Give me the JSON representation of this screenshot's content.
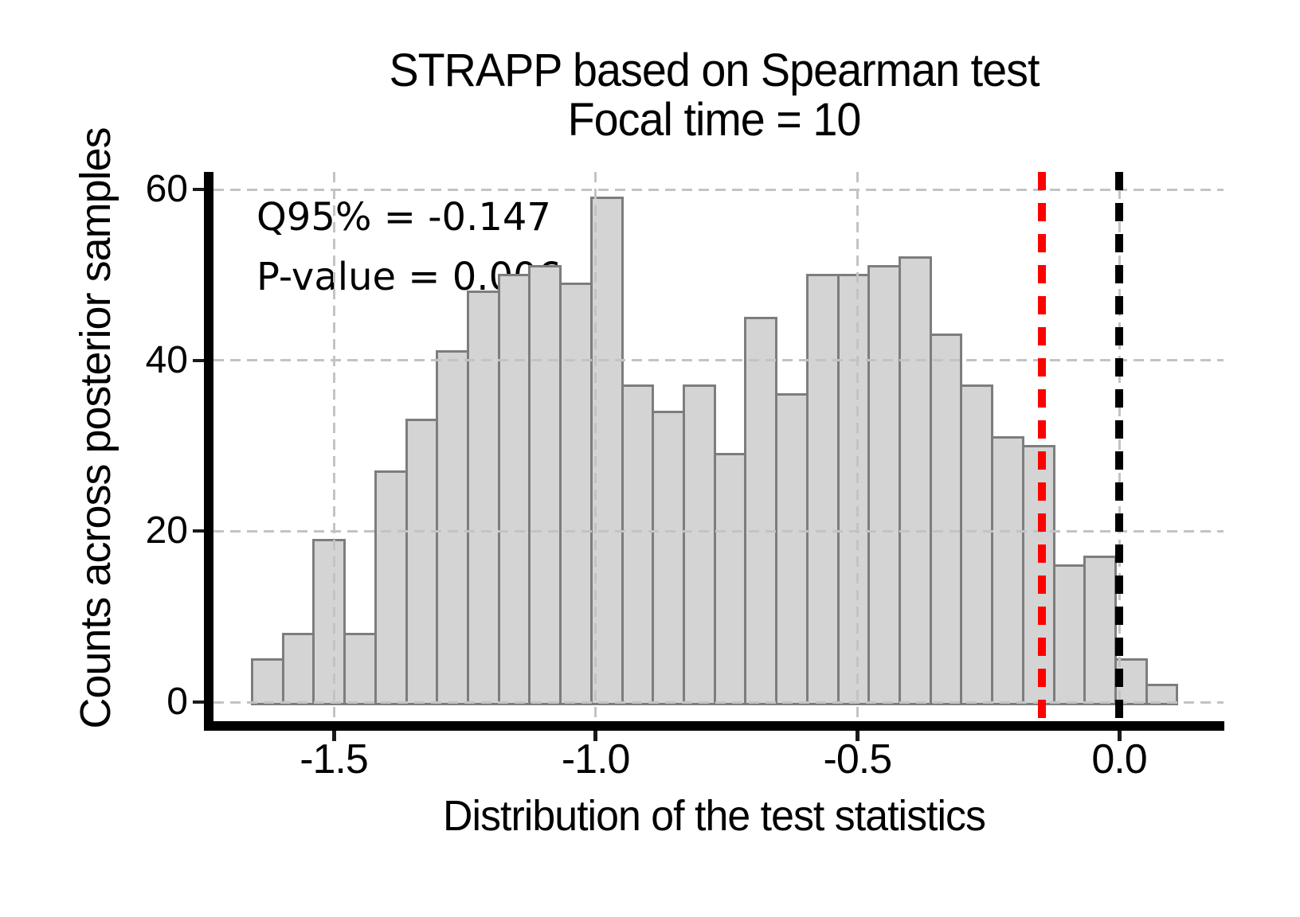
{
  "figure": {
    "title_line1": "STRAPP based on Spearman test",
    "title_line2": "Focal time = 10",
    "x_axis_label": "Distribution of the test statistics",
    "y_axis_label": "Counts across posterior samples",
    "annotation_q95": "Q95% = -0.147",
    "annotation_pvalue": "P-value = 0.006"
  },
  "chart_data": {
    "type": "bar",
    "subtype": "histogram",
    "title": "STRAPP based on Spearman test / Focal time = 10",
    "xlabel": "Distribution of the test statistics",
    "ylabel": "Counts across posterior samples",
    "bin_start": -1.656,
    "bin_width": 0.0589,
    "counts": [
      5,
      8,
      19,
      8,
      27,
      33,
      41,
      48,
      50,
      51,
      49,
      59,
      37,
      34,
      37,
      29,
      45,
      36,
      50,
      50,
      51,
      52,
      43,
      37,
      31,
      30,
      16,
      17,
      5,
      2
    ],
    "total_count": 1000,
    "q95_value": -0.147,
    "p_value": 0.006,
    "x_ticks": [
      -1.5,
      -1.0,
      -0.5,
      0.0
    ],
    "x_tick_labels": [
      "-1.5",
      "-1.0",
      "-0.5",
      "0.0"
    ],
    "y_ticks": [
      0,
      20,
      40,
      60
    ],
    "y_tick_labels": [
      "0",
      "20",
      "40",
      "60"
    ],
    "xlim": [
      -1.75,
      0.2
    ],
    "ylim": [
      -2.9,
      62
    ],
    "grid": true,
    "legend": false,
    "vlines": [
      {
        "x": -0.147,
        "color": "#ff0000",
        "style": "dashed",
        "name": "q95-threshold-line"
      },
      {
        "x": 0.0,
        "color": "#000000",
        "style": "dashed",
        "name": "zero-reference-line"
      }
    ],
    "bar_fill": "#d4d4d4",
    "bar_edge": "#7d7d7d"
  },
  "colors": {
    "background": "#ffffff",
    "grid": "#c3c3c3",
    "spine": "#000000",
    "text": "#000000",
    "q95_line": "#ff0000",
    "zero_line": "#000000"
  }
}
